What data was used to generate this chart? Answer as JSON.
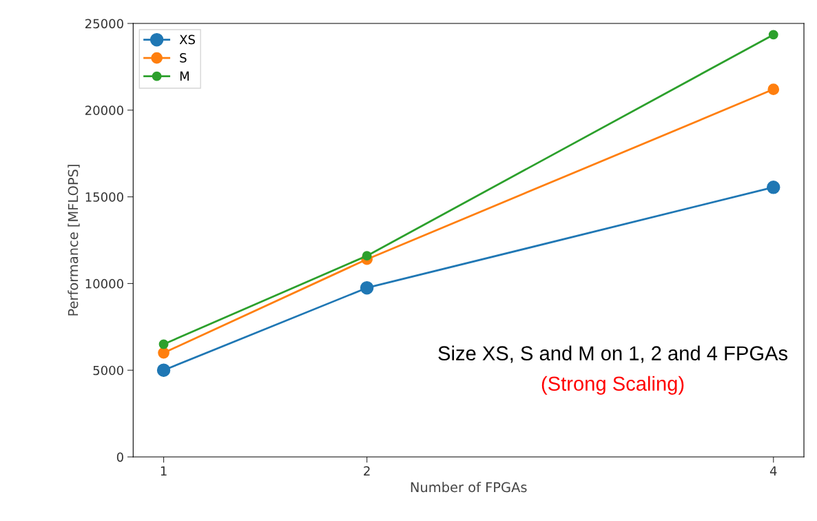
{
  "chart_data": {
    "type": "line",
    "xlabel": "Number of FPGAs",
    "ylabel": "Performance [MFLOPS]",
    "x": [
      1,
      2,
      4
    ],
    "series": [
      {
        "name": "XS",
        "color": "#1f77b4",
        "values": [
          5000,
          9750,
          15550
        ]
      },
      {
        "name": "S",
        "color": "#ff7f0e",
        "values": [
          6000,
          11400,
          21200
        ]
      },
      {
        "name": "M",
        "color": "#2ca02c",
        "values": [
          6500,
          11600,
          24350
        ]
      }
    ],
    "xlim": [
      0.85,
      4.15
    ],
    "xticks": [
      1,
      2,
      4
    ],
    "ylim": [
      0,
      25000
    ],
    "yticks": [
      0,
      5000,
      10000,
      15000,
      20000,
      25000
    ],
    "grid": false,
    "legend": "top left",
    "marker": "circle",
    "line_style": "solid",
    "annotations": [
      "Size XS, S and M on 1, 2 and 4 FPGAs",
      "(Strong Scaling)"
    ]
  }
}
